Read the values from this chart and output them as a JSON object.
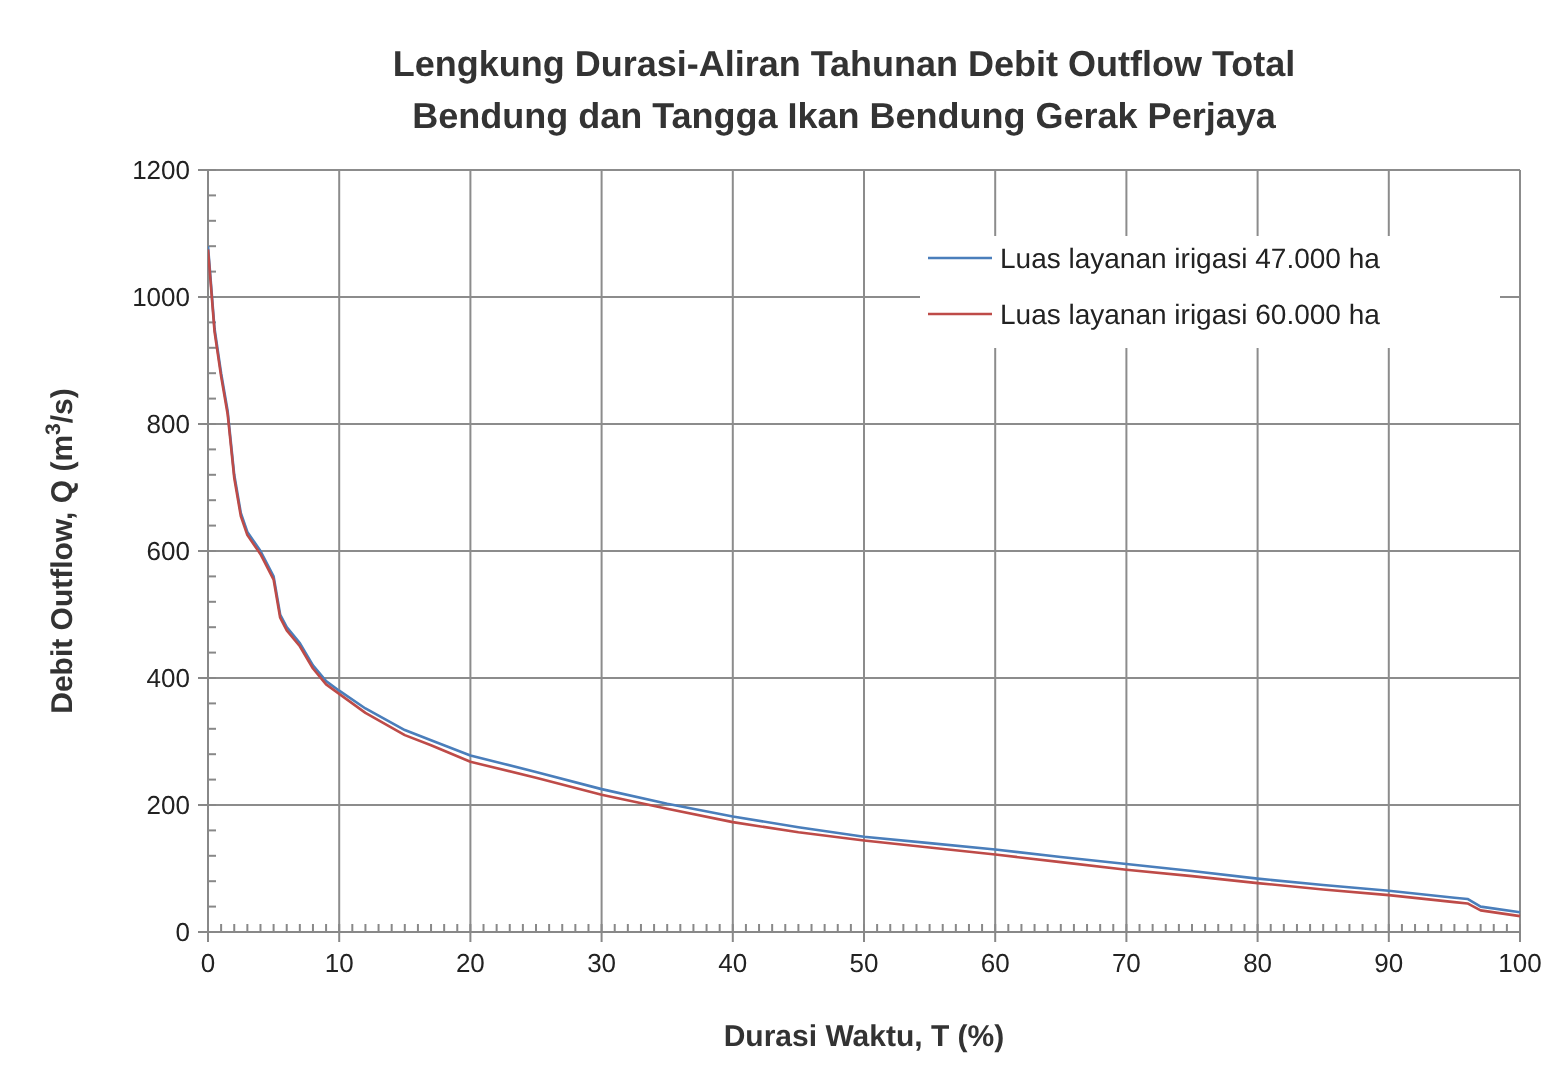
{
  "chart_data": {
    "type": "line",
    "title": "Lengkung Durasi-Aliran Tahunan Debit Outflow Total\nBendung dan Tangga Ikan Bendung Gerak Perjaya",
    "xlabel": "Durasi Waktu, T (%)",
    "ylabel": "Debit Outflow, Q (m$^{3}$/s)",
    "xlim": [
      0,
      100
    ],
    "ylim": [
      0,
      1200
    ],
    "xticks": [
      0,
      10,
      20,
      30,
      40,
      50,
      60,
      70,
      80,
      90,
      100
    ],
    "yticks": [
      0,
      200,
      400,
      600,
      800,
      1000,
      1200
    ],
    "grid": true,
    "legend": "top right",
    "marker": "none",
    "line_style": "solid",
    "series": [
      {
        "name": "Luas layanan irigasi 47.000 ha",
        "color": "#4a7ebb",
        "x": [
          0,
          0.5,
          1,
          1.5,
          2,
          2.5,
          3,
          4,
          5,
          5.5,
          6,
          7,
          8,
          9,
          10,
          12,
          15,
          17,
          20,
          25,
          30,
          35,
          40,
          45,
          50,
          55,
          60,
          65,
          70,
          75,
          80,
          85,
          90,
          95,
          96,
          97,
          100
        ],
        "values": [
          1080,
          950,
          880,
          820,
          720,
          660,
          630,
          600,
          560,
          500,
          480,
          455,
          420,
          395,
          380,
          352,
          318,
          302,
          278,
          252,
          225,
          202,
          182,
          165,
          150,
          140,
          130,
          118,
          107,
          96,
          84,
          74,
          65,
          54,
          52,
          40,
          31
        ]
      },
      {
        "name": "Luas layanan irigasi 60.000 ha",
        "color": "#be4b48",
        "x": [
          0,
          0.5,
          1,
          1.5,
          2,
          2.5,
          3,
          4,
          5,
          5.5,
          6,
          7,
          8,
          9,
          10,
          12,
          15,
          17,
          20,
          25,
          30,
          35,
          40,
          45,
          50,
          55,
          60,
          65,
          70,
          75,
          80,
          85,
          90,
          95,
          96,
          97,
          100
        ],
        "values": [
          1075,
          945,
          875,
          815,
          715,
          655,
          625,
          595,
          555,
          495,
          475,
          450,
          415,
          390,
          375,
          345,
          310,
          294,
          268,
          243,
          216,
          194,
          173,
          157,
          144,
          133,
          122,
          110,
          98,
          88,
          77,
          67,
          58,
          47,
          45,
          34,
          25
        ]
      }
    ]
  }
}
